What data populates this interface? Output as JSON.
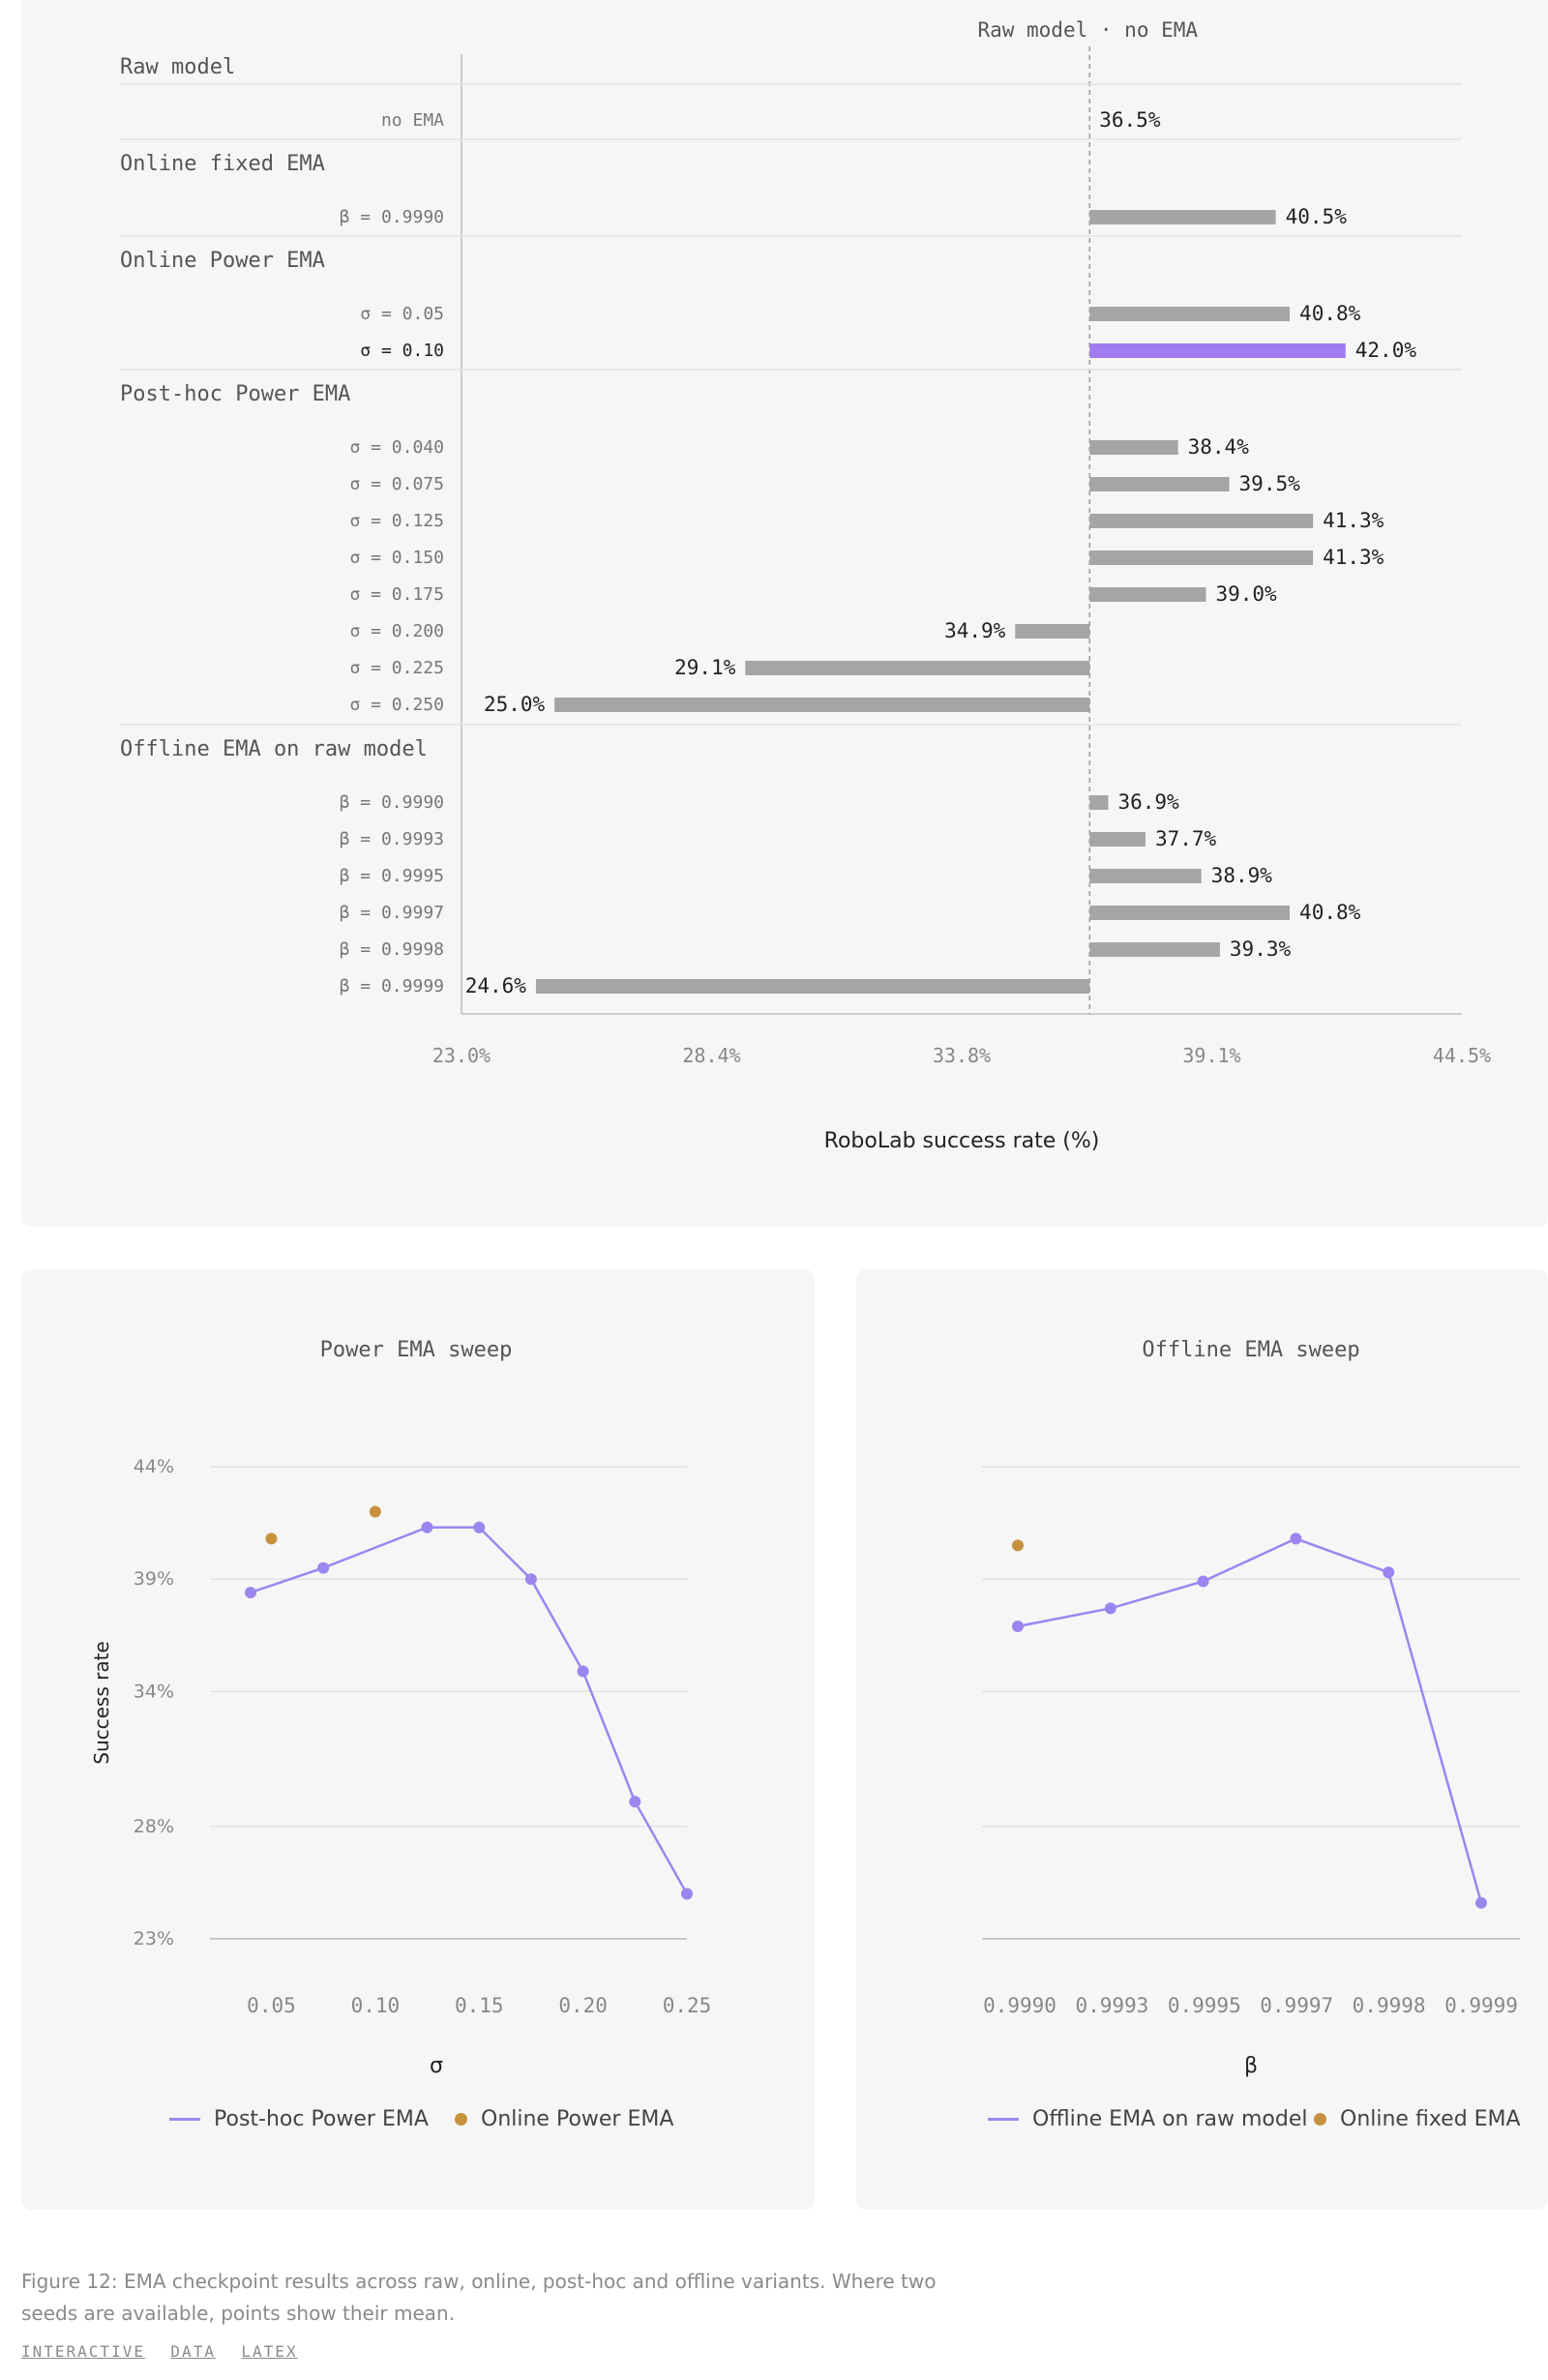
{
  "chart_data": [
    {
      "type": "bar",
      "reference_label": "Raw model · no EMA",
      "baseline": 36.5,
      "xlabel": "RoboLab success rate (%)",
      "x_ticks": [
        "23.0%",
        "28.4%",
        "33.8%",
        "39.1%",
        "44.5%"
      ],
      "xlim": [
        23.0,
        44.5
      ],
      "highlight_color": "#a07cf0",
      "bar_color": "#a3a6a4",
      "groups": [
        {
          "name": "Raw model",
          "items": [
            {
              "label": "no EMA",
              "value": 36.5,
              "value_label": "36.5%"
            }
          ]
        },
        {
          "name": "Online fixed EMA",
          "items": [
            {
              "label": "β = 0.9990",
              "value": 40.5,
              "value_label": "40.5%"
            }
          ]
        },
        {
          "name": "Online Power EMA",
          "items": [
            {
              "label": "σ = 0.05",
              "value": 40.8,
              "value_label": "40.8%"
            },
            {
              "label": "σ = 0.10",
              "value": 42.0,
              "value_label": "42.0%",
              "highlight": true
            }
          ]
        },
        {
          "name": "Post-hoc Power EMA",
          "items": [
            {
              "label": "σ = 0.040",
              "value": 38.4,
              "value_label": "38.4%"
            },
            {
              "label": "σ = 0.075",
              "value": 39.5,
              "value_label": "39.5%"
            },
            {
              "label": "σ = 0.125",
              "value": 41.3,
              "value_label": "41.3%"
            },
            {
              "label": "σ = 0.150",
              "value": 41.3,
              "value_label": "41.3%"
            },
            {
              "label": "σ = 0.175",
              "value": 39.0,
              "value_label": "39.0%"
            },
            {
              "label": "σ = 0.200",
              "value": 34.9,
              "value_label": "34.9%"
            },
            {
              "label": "σ = 0.225",
              "value": 29.1,
              "value_label": "29.1%"
            },
            {
              "label": "σ = 0.250",
              "value": 25.0,
              "value_label": "25.0%"
            }
          ]
        },
        {
          "name": "Offline EMA on raw model",
          "items": [
            {
              "label": "β = 0.9990",
              "value": 36.9,
              "value_label": "36.9%"
            },
            {
              "label": "β = 0.9993",
              "value": 37.7,
              "value_label": "37.7%"
            },
            {
              "label": "β = 0.9995",
              "value": 38.9,
              "value_label": "38.9%"
            },
            {
              "label": "β = 0.9997",
              "value": 40.8,
              "value_label": "40.8%"
            },
            {
              "label": "β = 0.9998",
              "value": 39.3,
              "value_label": "39.3%"
            },
            {
              "label": "β = 0.9999",
              "value": 24.6,
              "value_label": "24.6%"
            }
          ]
        }
      ]
    },
    {
      "type": "line",
      "title": "Power EMA sweep",
      "xlabel": "σ",
      "ylabel": "Success rate",
      "x_ticks": [
        "0.05",
        "0.10",
        "0.15",
        "0.20",
        "0.25"
      ],
      "x_tick_values": [
        0.05,
        0.1,
        0.15,
        0.2,
        0.25
      ],
      "xlim": [
        0.03,
        0.25
      ],
      "y_ticks": [
        "44%",
        "39%",
        "34%",
        "28%",
        "23%"
      ],
      "y_tick_values": [
        44,
        39,
        34,
        28,
        23
      ],
      "ylim": [
        23,
        44
      ],
      "series": [
        {
          "name": "Post-hoc Power EMA",
          "style": "line",
          "color": "#9b86f0",
          "x": [
            0.04,
            0.075,
            0.125,
            0.15,
            0.175,
            0.2,
            0.225,
            0.25
          ],
          "y": [
            38.4,
            39.5,
            41.3,
            41.3,
            39.0,
            34.9,
            29.1,
            25.0
          ]
        },
        {
          "name": "Online Power EMA",
          "style": "scatter",
          "color": "#c6923e",
          "x": [
            0.05,
            0.1
          ],
          "y": [
            40.8,
            42.0
          ]
        }
      ]
    },
    {
      "type": "line",
      "title": "Offline EMA sweep",
      "xlabel": "β",
      "x_ticks": [
        "0.9990",
        "0.9993",
        "0.9995",
        "0.9997",
        "0.9998",
        "0.9999"
      ],
      "y_tick_values": [
        44,
        39,
        34,
        28,
        23
      ],
      "ylim": [
        23,
        44
      ],
      "series": [
        {
          "name": "Offline EMA on raw model",
          "style": "line",
          "color": "#9b86f0",
          "x_index": [
            0,
            1,
            2,
            3,
            4,
            5
          ],
          "y": [
            36.9,
            37.7,
            38.9,
            40.8,
            39.3,
            24.6
          ]
        },
        {
          "name": "Online fixed EMA",
          "style": "scatter",
          "color": "#c6923e",
          "x_index": [
            0
          ],
          "y": [
            40.5
          ]
        }
      ]
    }
  ],
  "caption": "Figure 12: EMA checkpoint results across raw, online, post-hoc and offline variants. Where two seeds are available, points show their mean.",
  "links": [
    "INTERACTIVE",
    "DATA",
    "LATEX"
  ]
}
